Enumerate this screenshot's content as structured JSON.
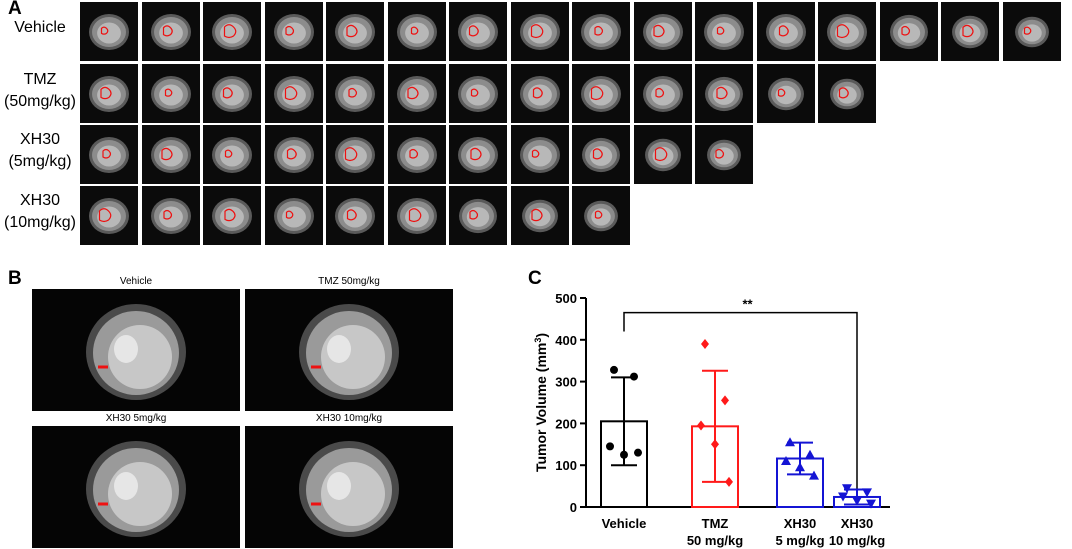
{
  "panel_a": {
    "letter": "A",
    "rows": [
      {
        "label_line1": "Vehicle",
        "label_line2": "",
        "slices": 16
      },
      {
        "label_line1": "TMZ",
        "label_line2": "(50mg/kg)",
        "slices": 13
      },
      {
        "label_line1": "XH30",
        "label_line2": "(5mg/kg)",
        "slices": 11
      },
      {
        "label_line1": "XH30",
        "label_line2": "(10mg/kg)",
        "slices": 9
      }
    ]
  },
  "panel_b": {
    "letter": "B",
    "images": [
      {
        "caption": "Vehicle"
      },
      {
        "caption": "TMZ 50mg/kg"
      },
      {
        "caption": "XH30 5mg/kg"
      },
      {
        "caption": "XH30 10mg/kg"
      }
    ]
  },
  "panel_c": {
    "letter": "C"
  },
  "chart_data": {
    "type": "bar",
    "categories": [
      [
        "Vehicle",
        ""
      ],
      [
        "TMZ",
        "50 mg/kg"
      ],
      [
        "XH30",
        "5 mg/kg"
      ],
      [
        "XH30",
        "10 mg/kg"
      ]
    ],
    "ylabel": "Tumor Volume (mm",
    "ylabel_superscript": "3",
    "ylabel_close": ")",
    "ylim": [
      0,
      500
    ],
    "yticks": [
      0,
      100,
      200,
      300,
      400,
      500
    ],
    "significance": {
      "from": 0,
      "to": 3,
      "label": "**",
      "y": 465
    },
    "series": [
      {
        "mean": 205,
        "sd": 105,
        "color": "#000000",
        "marker": "circle",
        "points": [
          328,
          312,
          145,
          125,
          130
        ]
      },
      {
        "mean": 193,
        "sd": 133,
        "color": "#ff1a1a",
        "marker": "diamond",
        "points": [
          390,
          255,
          195,
          150,
          60
        ]
      },
      {
        "mean": 116,
        "sd": 38,
        "color": "#1414d4",
        "marker": "triangle-up",
        "points": [
          155,
          125,
          110,
          95,
          75
        ]
      },
      {
        "mean": 24,
        "sd": 18,
        "color": "#1414d4",
        "marker": "triangle-down",
        "points": [
          45,
          35,
          25,
          15,
          8
        ]
      }
    ]
  }
}
